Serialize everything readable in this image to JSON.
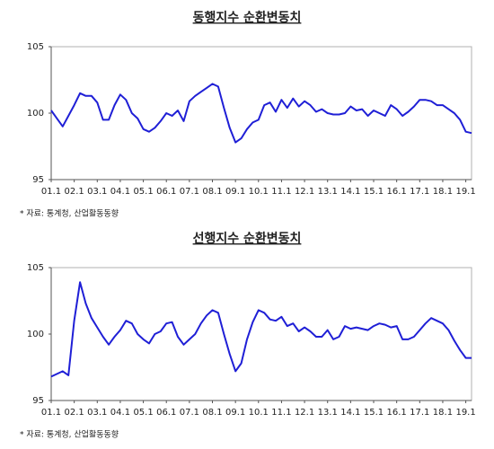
{
  "chart_data": [
    {
      "type": "line",
      "title": "동행지수 순환변동치",
      "note": "* 자료: 통계청, 산업활동동향",
      "color": "#1f1fd6",
      "categories": [
        "01.1",
        null,
        null,
        null,
        "02.1",
        null,
        null,
        null,
        "03.1",
        null,
        null,
        null,
        "04.1",
        null,
        null,
        null,
        "05.1",
        null,
        null,
        null,
        "06.1",
        null,
        null,
        null,
        "07.1",
        null,
        null,
        null,
        "08.1",
        null,
        null,
        null,
        "09.1",
        null,
        null,
        null,
        "10.1",
        null,
        null,
        null,
        "11.1",
        null,
        null,
        null,
        "12.1",
        null,
        null,
        null,
        "13.1",
        null,
        null,
        null,
        "14.1",
        null,
        null,
        null,
        "15.1",
        null,
        null,
        null,
        "16.1",
        null,
        null,
        null,
        "17.1",
        null,
        null,
        null,
        "18.1",
        null,
        null,
        null,
        "19.1",
        null
      ],
      "values": [
        100.2,
        99.6,
        99.0,
        99.8,
        100.6,
        101.5,
        101.3,
        101.3,
        100.8,
        99.5,
        99.5,
        100.6,
        101.4,
        101.0,
        100.0,
        99.6,
        98.8,
        98.6,
        98.9,
        99.4,
        100.0,
        99.8,
        100.2,
        99.4,
        100.9,
        101.3,
        101.6,
        101.9,
        102.2,
        102.0,
        100.4,
        98.9,
        97.8,
        98.1,
        98.8,
        99.3,
        99.5,
        100.6,
        100.8,
        100.1,
        101.0,
        100.4,
        101.1,
        100.5,
        100.9,
        100.6,
        100.1,
        100.3,
        100.0,
        99.9,
        99.9,
        100.0,
        100.5,
        100.2,
        100.3,
        99.8,
        100.2,
        100.0,
        99.8,
        100.6,
        100.3,
        99.8,
        100.1,
        100.5,
        101.0,
        101.0,
        100.9,
        100.6,
        100.6,
        100.3,
        100.0,
        99.5,
        98.6,
        98.5
      ],
      "ylim": [
        95,
        105
      ],
      "yticks": [
        95,
        100,
        105
      ]
    },
    {
      "type": "line",
      "title": "선행지수 순환변동치",
      "note": "* 자료: 통계청, 산업활동동향",
      "color": "#1f1fd6",
      "categories": [
        "01.1",
        null,
        null,
        null,
        "02.1",
        null,
        null,
        null,
        "03.1",
        null,
        null,
        null,
        "04.1",
        null,
        null,
        null,
        "05.1",
        null,
        null,
        null,
        "06.1",
        null,
        null,
        null,
        "07.1",
        null,
        null,
        null,
        "08.1",
        null,
        null,
        null,
        "09.1",
        null,
        null,
        null,
        "10.1",
        null,
        null,
        null,
        "11.1",
        null,
        null,
        null,
        "12.1",
        null,
        null,
        null,
        "13.1",
        null,
        null,
        null,
        "14.1",
        null,
        null,
        null,
        "15.1",
        null,
        null,
        null,
        "16.1",
        null,
        null,
        null,
        "17.1",
        null,
        null,
        null,
        "18.1",
        null,
        null,
        null,
        "19.1",
        null
      ],
      "values": [
        96.8,
        97.0,
        97.2,
        96.9,
        101.0,
        103.9,
        102.3,
        101.2,
        100.5,
        99.8,
        99.2,
        99.8,
        100.3,
        101.0,
        100.8,
        100.0,
        99.6,
        99.3,
        100.0,
        100.2,
        100.8,
        100.9,
        99.8,
        99.2,
        99.6,
        100.0,
        100.8,
        101.4,
        101.8,
        101.6,
        100.0,
        98.5,
        97.2,
        97.8,
        99.6,
        100.9,
        101.8,
        101.6,
        101.1,
        101.0,
        101.3,
        100.6,
        100.8,
        100.2,
        100.5,
        100.2,
        99.8,
        99.8,
        100.3,
        99.6,
        99.8,
        100.6,
        100.4,
        100.5,
        100.4,
        100.3,
        100.6,
        100.8,
        100.7,
        100.5,
        100.6,
        99.6,
        99.6,
        99.8,
        100.3,
        100.8,
        101.2,
        101.0,
        100.8,
        100.3,
        99.5,
        98.8,
        98.2,
        98.2
      ],
      "ylim": [
        95,
        105
      ],
      "yticks": [
        95,
        100,
        105
      ]
    }
  ]
}
